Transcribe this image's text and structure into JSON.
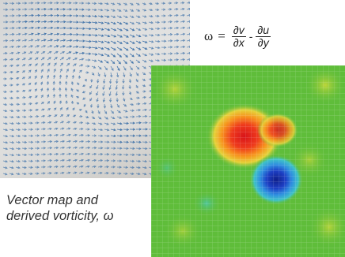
{
  "equation": {
    "lhs": "ω",
    "equals": "=",
    "term1": {
      "numerator": "∂v",
      "denominator": "∂x"
    },
    "operator": "-",
    "term2": {
      "numerator": "∂u",
      "denominator": "∂y"
    }
  },
  "caption": {
    "line1": "Vector map and",
    "line2": "derived vorticity, ω"
  },
  "colors": {
    "vector_arrows": "#3a6fa8",
    "vorticity_background": "#5fbd3a",
    "positive_vorticity": "#e8251c",
    "negative_vorticity": "#1d3fc4"
  }
}
